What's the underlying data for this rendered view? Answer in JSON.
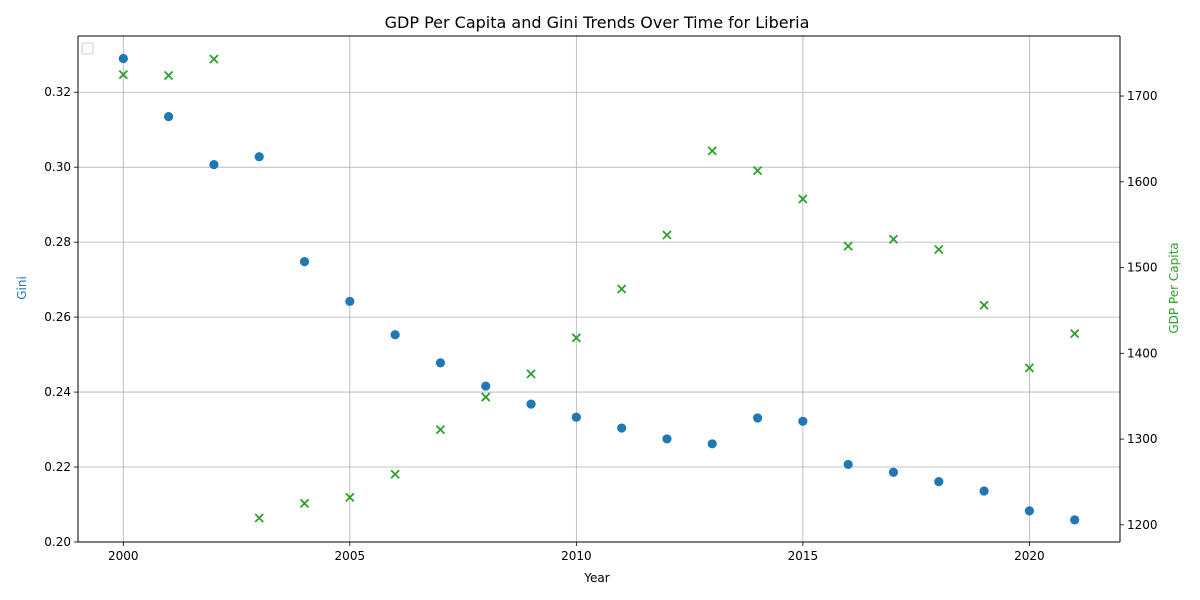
{
  "chart_data": {
    "type": "scatter",
    "title": "GDP Per Capita and Gini Trends Over Time for Liberia",
    "xlabel": "Year",
    "ylabel_left": "Gini",
    "ylabel_right": "GDP Per Capita",
    "x": [
      2000,
      2001,
      2002,
      2003,
      2004,
      2005,
      2006,
      2007,
      2008,
      2009,
      2010,
      2011,
      2012,
      2013,
      2014,
      2015,
      2016,
      2017,
      2018,
      2019,
      2020,
      2021
    ],
    "xlim": [
      1999,
      2022
    ],
    "xticks": [
      2000,
      2005,
      2010,
      2015,
      2020
    ],
    "ylim_left": [
      0.2,
      0.335
    ],
    "yticks_left": [
      "0.20",
      "0.22",
      "0.24",
      "0.26",
      "0.28",
      "0.30",
      "0.32"
    ],
    "ylim_right": [
      1180,
      1770
    ],
    "yticks_right": [
      1200,
      1300,
      1400,
      1500,
      1600,
      1700
    ],
    "grid": true,
    "legend": "upper-left (empty)",
    "series": [
      {
        "axis": "left",
        "marker": "circle",
        "color": "#1f77b4",
        "values": [
          0.329,
          0.3135,
          0.3007,
          0.3028,
          0.2748,
          0.2642,
          0.2553,
          0.2478,
          0.2416,
          0.2368,
          0.2333,
          0.2304,
          0.2275,
          0.2262,
          0.2331,
          0.2322,
          0.2207,
          0.2186,
          0.2161,
          0.2136,
          0.2083,
          0.2059
        ]
      },
      {
        "axis": "right",
        "marker": "x",
        "color": "#2ca02c",
        "values": [
          1725,
          1724,
          1743,
          1208,
          1225,
          1232,
          1259,
          1311,
          1349,
          1376,
          1418,
          1475,
          1538,
          1636,
          1613,
          1580,
          1525,
          1533,
          1521,
          1456,
          1383,
          1423
        ]
      }
    ]
  }
}
